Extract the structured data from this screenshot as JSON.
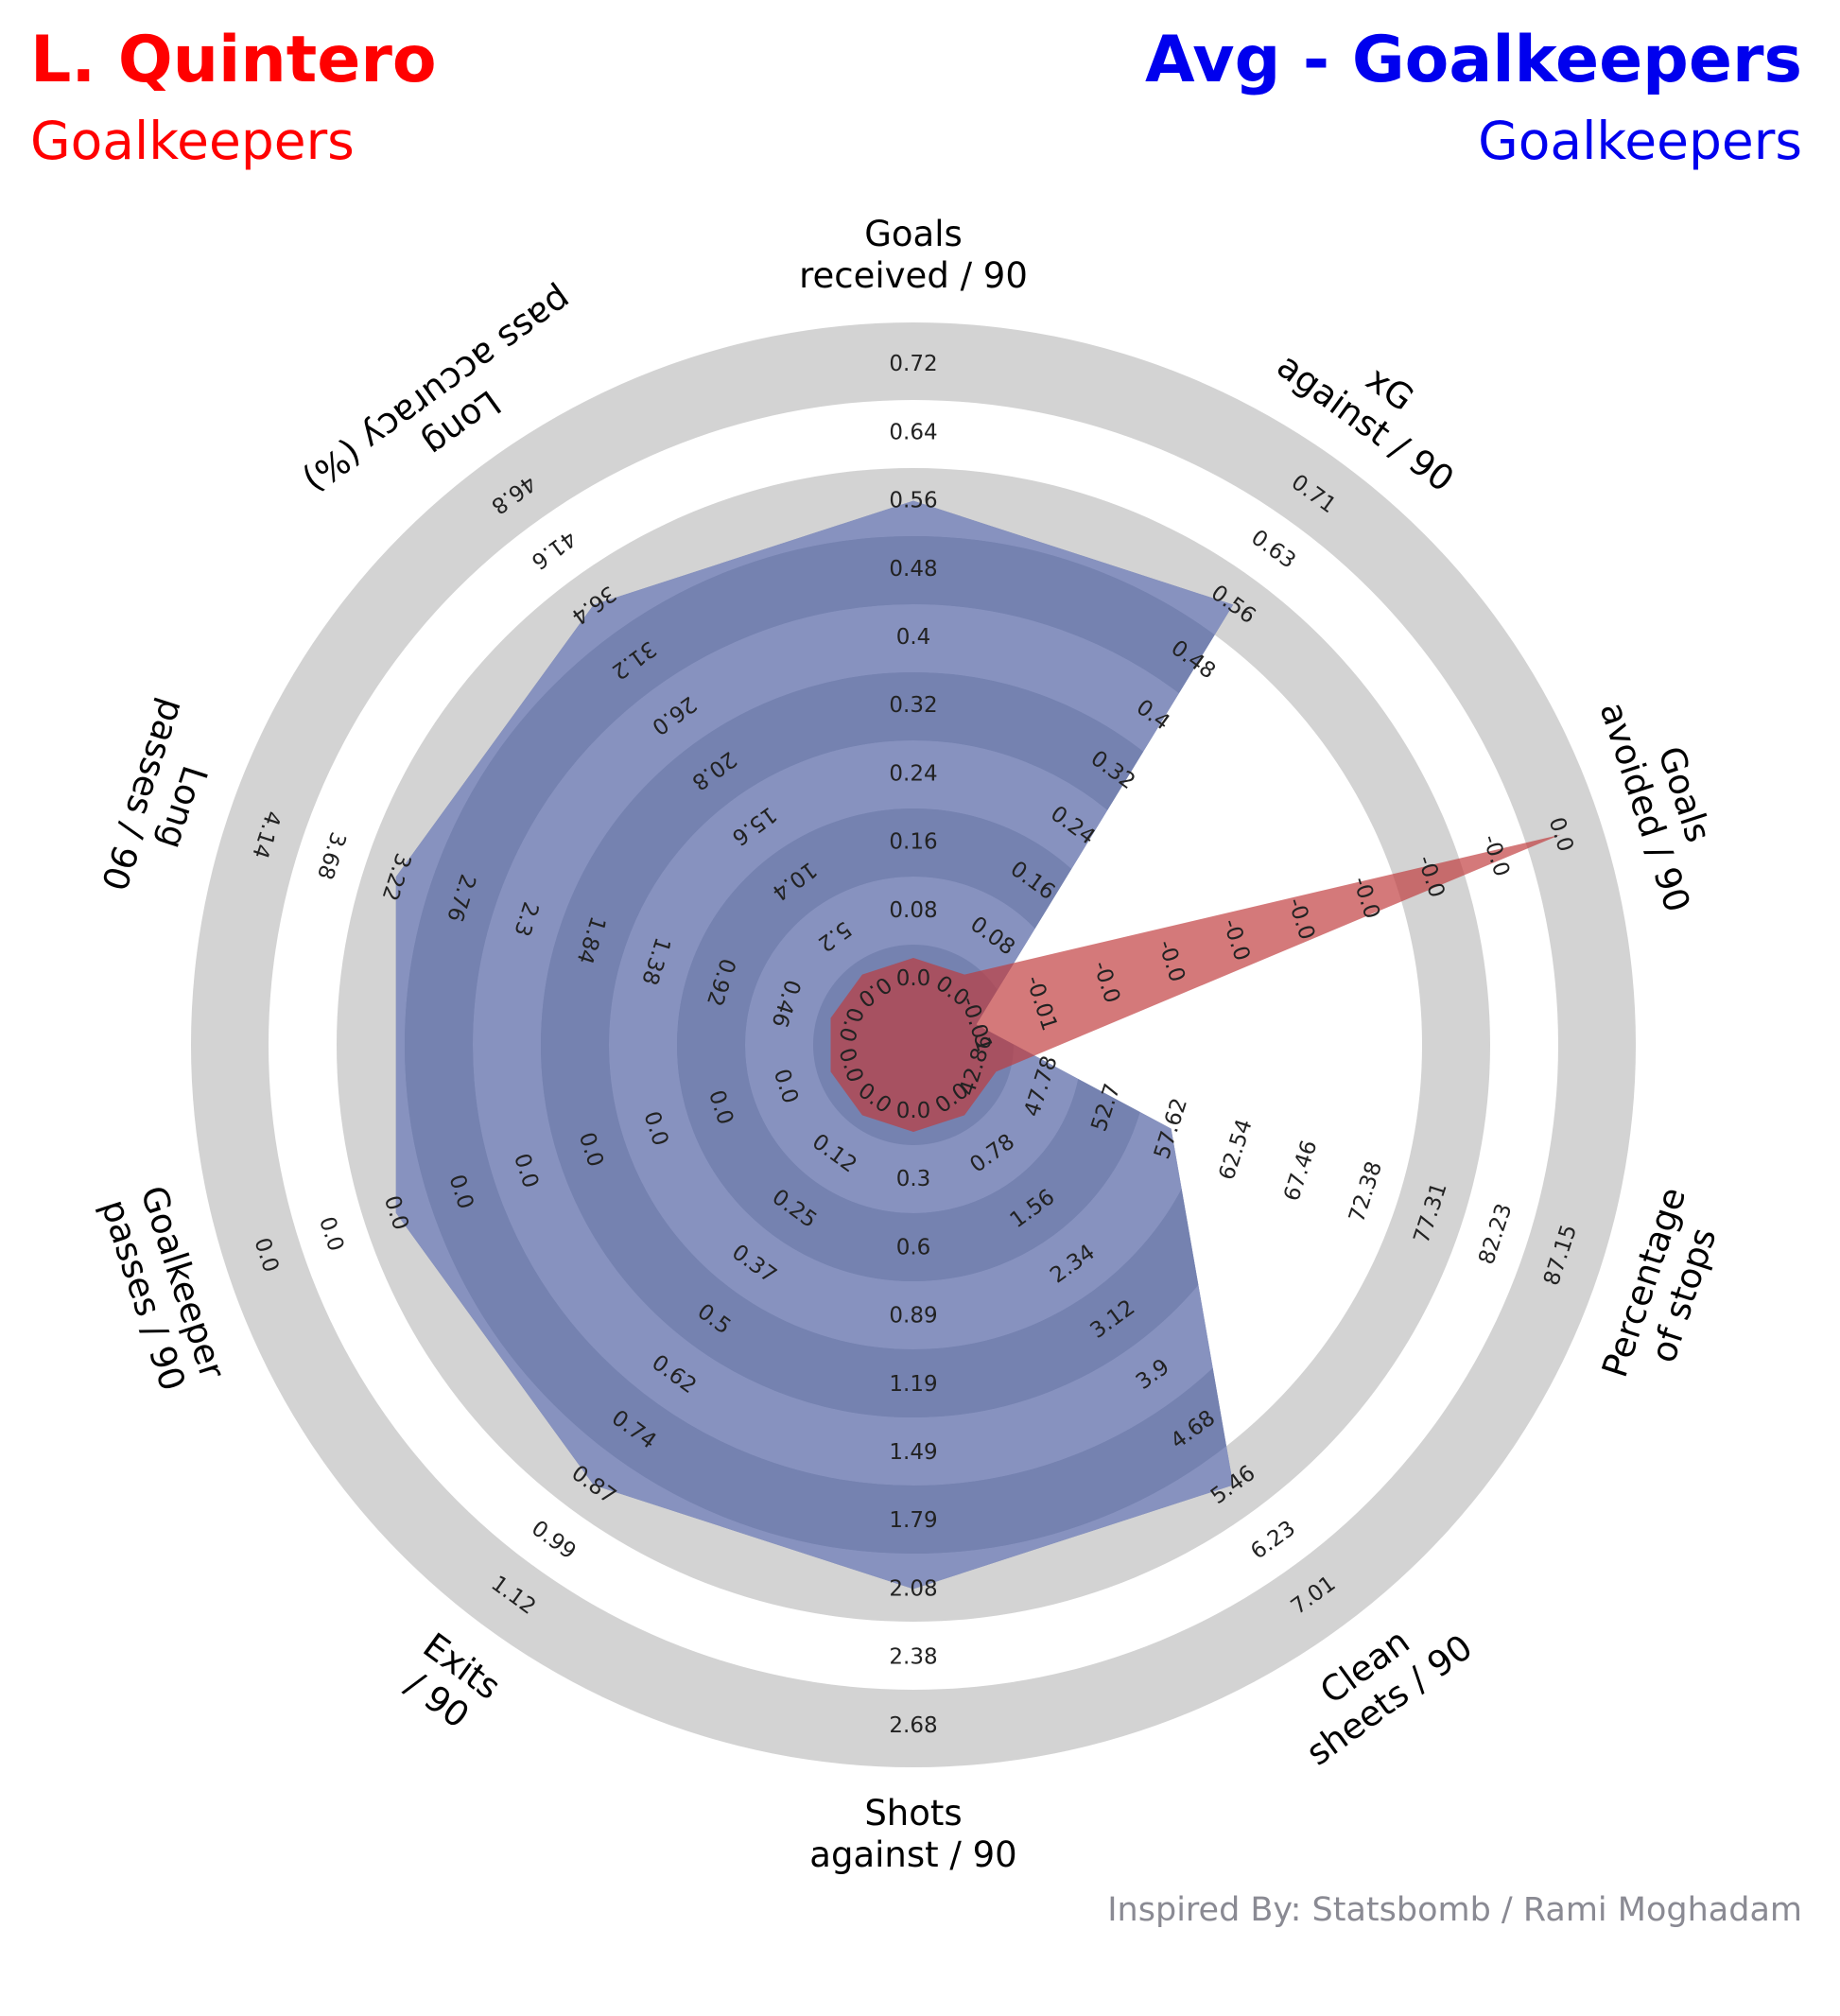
{
  "header": {
    "player_name": "L. Quintero",
    "player_position": "Goalkeepers",
    "comparison_name": "Avg - Goalkeepers",
    "comparison_position": "Goalkeepers"
  },
  "credit": "Inspired By: Statsbomb / Rami Moghadam",
  "colors": {
    "player": "#c0393b",
    "comparison": "#5c6ba6",
    "ring_gray": "#d3d3d3",
    "band_dark": "#7582b0",
    "band_light": "#8792bf",
    "title_red": "#ff0000",
    "title_blue": "#0000ee"
  },
  "chart_data": {
    "type": "radar",
    "series": [
      {
        "name": "L. Quintero",
        "values": [
          0.0,
          0.0,
          0.0,
          42.86,
          0.0,
          0.0,
          0.0,
          0.0,
          0.0,
          0.0
        ]
      },
      {
        "name": "Avg - Goalkeepers",
        "values": [
          0.56,
          0.56,
          -0.01,
          57.62,
          5.46,
          2.08,
          0.87,
          0.0,
          3.22,
          36.4
        ]
      }
    ],
    "axes": [
      {
        "label": "Goals\nreceived / 90",
        "ticks": [
          "0.0",
          "0.08",
          "0.16",
          "0.24",
          "0.32",
          "0.4",
          "0.48",
          "0.56",
          "0.64",
          "0.72"
        ]
      },
      {
        "label": "xG\nagainst / 90",
        "ticks": [
          "0.0",
          "0.08",
          "0.16",
          "0.24",
          "0.32",
          "0.4",
          "0.48",
          "0.56",
          "0.63",
          "0.71"
        ]
      },
      {
        "label": "Goals\navoided / 90",
        "ticks": [
          "-0.01",
          "-0.01",
          "-0.0",
          "-0.0",
          "-0.0",
          "-0.0",
          "-0.0",
          "-0.0",
          "-0.0",
          "0.0"
        ]
      },
      {
        "label": "Percentage\nof stops",
        "ticks": [
          "42.86",
          "47.78",
          "52.7",
          "57.62",
          "62.54",
          "67.46",
          "72.38",
          "77.31",
          "82.23",
          "87.15"
        ]
      },
      {
        "label": "Clean\nsheets / 90",
        "ticks": [
          "0.0",
          "0.78",
          "1.56",
          "2.34",
          "3.12",
          "3.9",
          "4.68",
          "5.46",
          "6.23",
          "7.01"
        ]
      },
      {
        "label": "Shots\nagainst / 90",
        "ticks": [
          "0.0",
          "0.3",
          "0.6",
          "0.89",
          "1.19",
          "1.49",
          "1.79",
          "2.08",
          "2.38",
          "2.68"
        ]
      },
      {
        "label": "Exits\n/ 90",
        "ticks": [
          "0.0",
          "0.12",
          "0.25",
          "0.37",
          "0.5",
          "0.62",
          "0.74",
          "0.87",
          "0.99",
          "1.12"
        ]
      },
      {
        "label": "Goalkeeper\npasses / 90",
        "ticks": [
          "0.0",
          "0.0",
          "0.0",
          "0.0",
          "0.0",
          "0.0",
          "0.0",
          "0.0",
          "0.0",
          "0.0"
        ]
      },
      {
        "label": "Long\npasses / 90",
        "ticks": [
          "0.0",
          "0.46",
          "0.92",
          "1.38",
          "1.84",
          "2.3",
          "2.76",
          "3.22",
          "3.68",
          "4.14"
        ]
      },
      {
        "label": "Long\npass accuracy (%)",
        "ticks": [
          "0.0",
          "5.2",
          "10.4",
          "15.6",
          "20.8",
          "26.0",
          "31.2",
          "36.4",
          "41.6",
          "46.8"
        ]
      }
    ],
    "level_scale": "tick index 0-9 on each axis",
    "series_levels": [
      {
        "name": "L. Quintero",
        "levels": [
          0,
          0,
          9,
          0,
          0,
          0,
          0,
          0,
          0,
          0
        ]
      },
      {
        "name": "Avg - Goalkeepers",
        "levels": [
          7,
          7,
          0,
          3,
          7,
          7,
          7,
          7,
          7,
          7
        ]
      }
    ]
  }
}
